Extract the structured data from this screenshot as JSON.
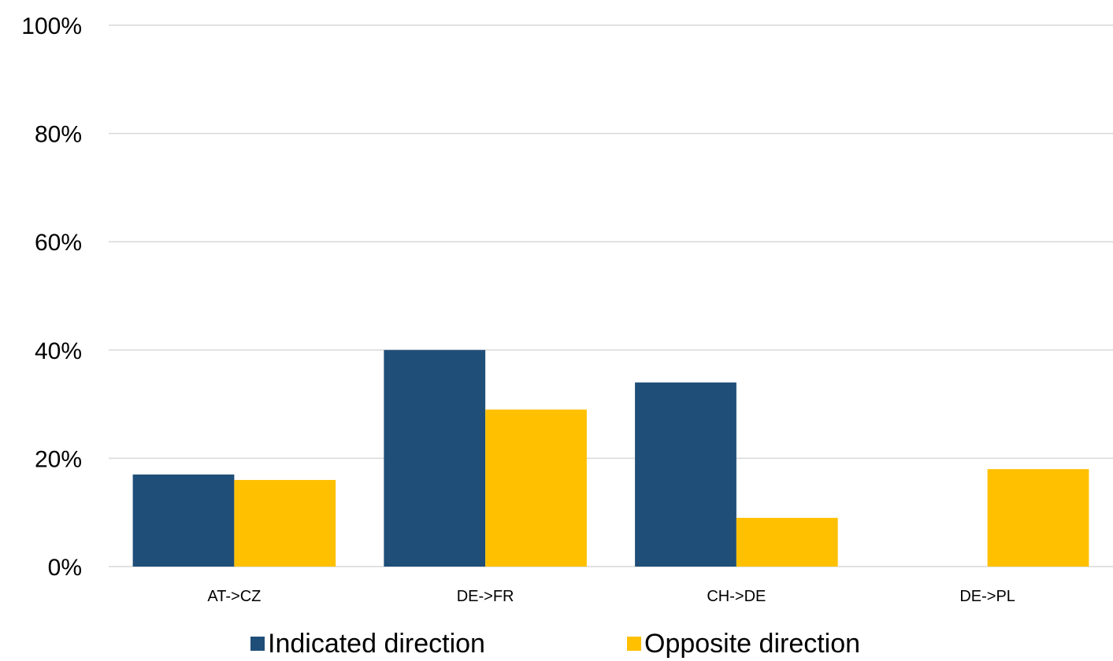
{
  "chart_data": {
    "type": "bar",
    "categories": [
      "AT->CZ",
      "DE->FR",
      "CH->DE",
      "DE->PL"
    ],
    "series": [
      {
        "name": "Indicated direction",
        "values": [
          17,
          40,
          34,
          0
        ],
        "color": "#1f4e79"
      },
      {
        "name": "Opposite direction",
        "values": [
          16,
          29,
          9,
          18
        ],
        "color": "#ffc000"
      }
    ],
    "yticks": [
      "0%",
      "20%",
      "40%",
      "60%",
      "80%",
      "100%"
    ],
    "ylim": [
      0,
      100
    ],
    "title": "",
    "xlabel": "",
    "ylabel": "",
    "grid": true,
    "legend_position": "bottom"
  }
}
